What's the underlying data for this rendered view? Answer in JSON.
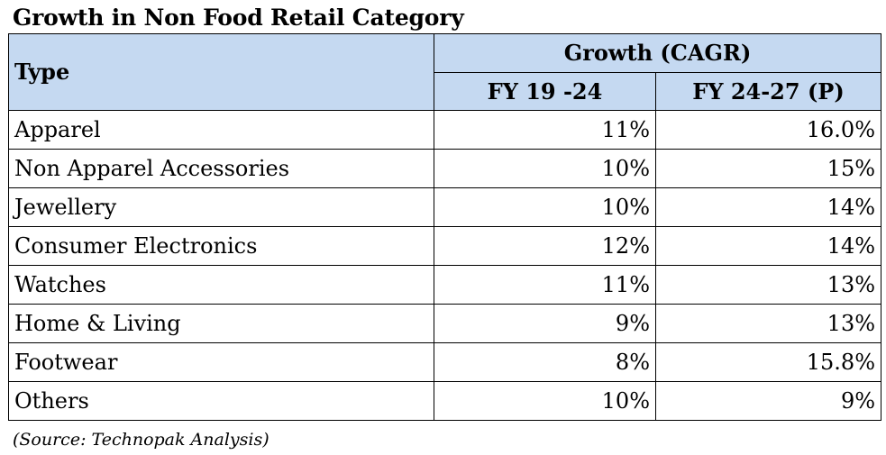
{
  "title": "Growth in Non Food Retail Category",
  "table": {
    "type_header": "Type",
    "group_header": "Growth (CAGR)",
    "columns": [
      "FY 19 -24",
      "FY 24-27 (P)"
    ],
    "rows": [
      {
        "type": "Apparel",
        "fy19_24": "11%",
        "fy24_27": "16.0%"
      },
      {
        "type": "Non Apparel Accessories",
        "fy19_24": "10%",
        "fy24_27": "15%"
      },
      {
        "type": "Jewellery",
        "fy19_24": "10%",
        "fy24_27": "14%"
      },
      {
        "type": "Consumer Electronics",
        "fy19_24": "12%",
        "fy24_27": "14%"
      },
      {
        "type": "Watches",
        "fy19_24": "11%",
        "fy24_27": "13%"
      },
      {
        "type": "Home & Living",
        "fy19_24": "9%",
        "fy24_27": "13%"
      },
      {
        "type": "Footwear",
        "fy19_24": "8%",
        "fy24_27": "15.8%"
      },
      {
        "type": "Others",
        "fy19_24": "10%",
        "fy24_27": "9%"
      }
    ]
  },
  "source": "(Source: Technopak Analysis)",
  "colors": {
    "header_background": "#c5d9f1",
    "border": "#000000",
    "text": "#000000"
  }
}
